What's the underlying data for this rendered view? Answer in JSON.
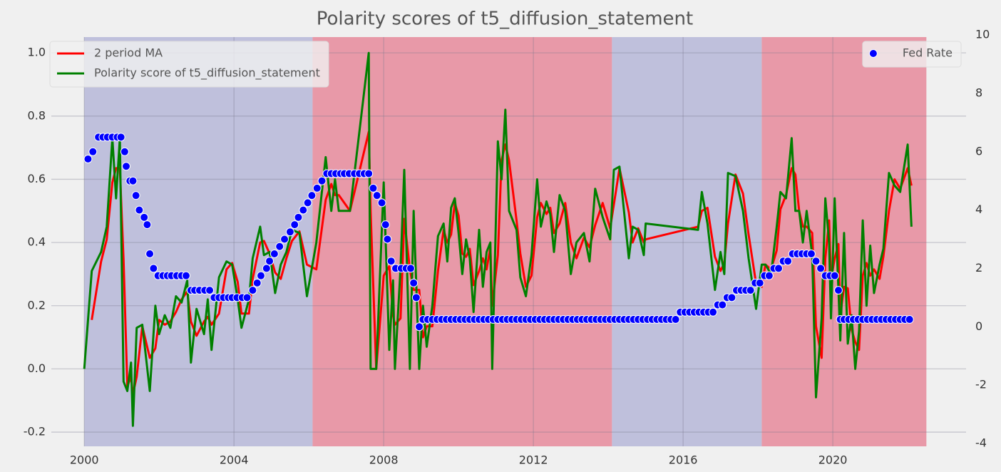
{
  "chart_data": {
    "type": "line",
    "title": "Polarity scores of t5_diffusion_statement",
    "xlim": [
      1999.12,
      2023.56
    ],
    "xticks": [
      2000,
      2004,
      2008,
      2012,
      2016,
      2020
    ],
    "ylim": [
      -0.245,
      1.05
    ],
    "yticks": [
      -0.2,
      {
        "value": 0,
        "label": "0.0"
      },
      0.2,
      0.4,
      0.6,
      0.8,
      {
        "value": 1,
        "label": "1.0"
      }
    ],
    "y2lim": [
      -4.1,
      9.93
    ],
    "y2ticks": [
      -4,
      -2,
      0,
      2,
      4,
      6,
      8,
      10
    ],
    "grid": true,
    "legend": "upper left",
    "legend2": "upper right",
    "spans": [
      {
        "start": 2000.0,
        "end": 2006.1,
        "color": "#bfc0dc"
      },
      {
        "start": 2006.1,
        "end": 2014.1,
        "color": "#e899a8"
      },
      {
        "start": 2014.1,
        "end": 2018.1,
        "color": "#bfc0dc"
      },
      {
        "start": 2018.1,
        "end": 2022.5,
        "color": "#e899a8"
      }
    ],
    "x": [
      2000.0,
      2000.2,
      2000.45,
      2000.6,
      2000.75,
      2000.85,
      2000.95,
      2001.05,
      2001.15,
      2001.25,
      2001.3,
      2001.4,
      2001.55,
      2001.75,
      2001.9,
      2002.0,
      2002.15,
      2002.3,
      2002.45,
      2002.6,
      2002.75,
      2002.85,
      2003.0,
      2003.2,
      2003.3,
      2003.4,
      2003.6,
      2003.8,
      2003.95,
      2004.1,
      2004.2,
      2004.4,
      2004.5,
      2004.7,
      2004.8,
      2004.95,
      2005.1,
      2005.25,
      2005.4,
      2005.55,
      2005.75,
      2005.95,
      2006.2,
      2006.45,
      2006.6,
      2006.7,
      2006.8,
      2007.1,
      2007.6,
      2007.65,
      2007.8,
      2008.0,
      2008.15,
      2008.25,
      2008.3,
      2008.45,
      2008.55,
      2008.7,
      2008.8,
      2008.95,
      2009.05,
      2009.15,
      2009.3,
      2009.45,
      2009.6,
      2009.7,
      2009.8,
      2009.9,
      2010.0,
      2010.1,
      2010.2,
      2010.3,
      2010.4,
      2010.55,
      2010.65,
      2010.75,
      2010.85,
      2010.9,
      2011.05,
      2011.15,
      2011.25,
      2011.35,
      2011.55,
      2011.65,
      2011.8,
      2011.95,
      2012.1,
      2012.2,
      2012.35,
      2012.45,
      2012.55,
      2012.7,
      2012.85,
      2013.0,
      2013.15,
      2013.35,
      2013.5,
      2013.65,
      2013.85,
      2014.05,
      2014.15,
      2014.3,
      2014.55,
      2014.65,
      2014.8,
      2014.95,
      2015.0,
      2016.4,
      2016.5,
      2016.65,
      2016.85,
      2017.0,
      2017.1,
      2017.2,
      2017.4,
      2017.6,
      2017.75,
      2017.95,
      2018.1,
      2018.2,
      2018.35,
      2018.5,
      2018.6,
      2018.75,
      2018.9,
      2019.0,
      2019.1,
      2019.2,
      2019.3,
      2019.45,
      2019.55,
      2019.7,
      2019.8,
      2019.9,
      2019.95,
      2020.05,
      2020.15,
      2020.2,
      2020.3,
      2020.4,
      2020.5,
      2020.6,
      2020.7,
      2020.8,
      2020.9,
      2021.0,
      2021.1,
      2021.25,
      2021.35,
      2021.5,
      2021.65,
      2021.8,
      2022.0,
      2022.1
    ],
    "series": [
      {
        "name": "2 period MA",
        "color": "#ff0000",
        "values": [
          null,
          0.155,
          0.34,
          0.41,
          0.59,
          0.635,
          0.635,
          0.345,
          -0.055,
          -0.025,
          -0.08,
          -0.025,
          0.135,
          0.035,
          0.065,
          0.155,
          0.14,
          0.15,
          0.18,
          0.22,
          0.245,
          0.15,
          0.105,
          0.15,
          0.165,
          0.14,
          0.175,
          0.315,
          0.335,
          0.275,
          0.175,
          0.175,
          0.285,
          0.4,
          0.405,
          0.365,
          0.305,
          0.285,
          0.35,
          0.405,
          0.435,
          0.33,
          0.315,
          0.535,
          0.585,
          0.55,
          0.55,
          0.5,
          0.75,
          0.5,
          0,
          0.295,
          0.325,
          0.17,
          0.14,
          0.16,
          0.475,
          0.315,
          0.25,
          0.25,
          0.1,
          0.135,
          0.135,
          0.31,
          0.44,
          0.4,
          0.425,
          0.525,
          0.485,
          0.365,
          0.355,
          0.38,
          0.265,
          0.31,
          0.35,
          0.315,
          0.385,
          0.2,
          0.36,
          0.66,
          0.71,
          0.66,
          0.47,
          0.365,
          0.26,
          0.295,
          0.48,
          0.525,
          0.49,
          0.51,
          0.43,
          0.46,
          0.525,
          0.4,
          0.35,
          0.415,
          0.385,
          0.455,
          0.525,
          0.445,
          0.52,
          0.635,
          0.495,
          0.4,
          0.445,
          0.4,
          0.41,
          0.45,
          0.5,
          0.51,
          0.355,
          0.31,
          0.335,
          0.46,
          0.615,
          0.555,
          0.425,
          0.27,
          0.26,
          0.33,
          0.315,
          0.375,
          0.505,
          0.55,
          0.635,
          0.615,
          0.5,
          0.45,
          0.45,
          0.43,
          0.135,
          0.035,
          0.35,
          0.47,
          0.28,
          0.35,
          0.395,
          0.17,
          0.26,
          0.255,
          0.125,
          0.085,
          0.06,
          0.295,
          0.335,
          0.295,
          0.315,
          0.285,
          0.355,
          0.5,
          0.6,
          0.57,
          0.635,
          0.58
        ]
      },
      {
        "name": "Polarity score of t5_diffusion_statement",
        "color": "#008000",
        "values": [
          0.0,
          0.31,
          0.37,
          0.45,
          0.73,
          0.54,
          0.73,
          -0.04,
          -0.07,
          0.02,
          -0.18,
          0.13,
          0.14,
          -0.07,
          0.2,
          0.11,
          0.17,
          0.13,
          0.23,
          0.21,
          0.28,
          0.02,
          0.19,
          0.11,
          0.22,
          0.06,
          0.29,
          0.34,
          0.33,
          0.22,
          0.13,
          0.22,
          0.35,
          0.45,
          0.36,
          0.37,
          0.24,
          0.33,
          0.37,
          0.44,
          0.43,
          0.23,
          0.4,
          0.67,
          0.5,
          0.6,
          0.5,
          0.5,
          1.0,
          0.0,
          0.0,
          0.59,
          0.06,
          0.28,
          0.0,
          0.32,
          0.63,
          0.0,
          0.5,
          0.0,
          0.2,
          0.07,
          0.2,
          0.42,
          0.46,
          0.34,
          0.51,
          0.54,
          0.43,
          0.3,
          0.41,
          0.35,
          0.18,
          0.44,
          0.26,
          0.37,
          0.4,
          0.0,
          0.72,
          0.6,
          0.82,
          0.5,
          0.44,
          0.29,
          0.23,
          0.36,
          0.6,
          0.45,
          0.53,
          0.49,
          0.37,
          0.55,
          0.5,
          0.3,
          0.4,
          0.43,
          0.34,
          0.57,
          0.48,
          0.41,
          0.63,
          0.64,
          0.35,
          0.45,
          0.44,
          0.36,
          0.46,
          0.44,
          0.56,
          0.46,
          0.25,
          0.37,
          0.3,
          0.62,
          0.61,
          0.5,
          0.35,
          0.19,
          0.33,
          0.33,
          0.3,
          0.45,
          0.56,
          0.54,
          0.73,
          0.5,
          0.5,
          0.4,
          0.5,
          0.36,
          -0.09,
          0.16,
          0.54,
          0.4,
          0.16,
          0.54,
          0.25,
          0.09,
          0.43,
          0.08,
          0.17,
          0.0,
          0.12,
          0.47,
          0.2,
          0.39,
          0.24,
          0.33,
          0.38,
          0.62,
          0.58,
          0.56,
          0.71,
          0.45
        ]
      },
      {
        "name": "Fed Rate",
        "type": "scatter",
        "axis": "y2",
        "color": "#0000ff",
        "x": [
          2000.1,
          2000.23,
          2000.38,
          2000.5,
          2000.62,
          2000.75,
          2000.88,
          2000.98,
          2001.08,
          2001.12,
          2001.22,
          2001.3,
          2001.38,
          2001.47,
          2001.6,
          2001.68,
          2001.75,
          2001.85,
          2001.97,
          2002.1,
          2002.22,
          2002.33,
          2002.47,
          2002.6,
          2002.72,
          2002.85,
          2002.95,
          2003.08,
          2003.22,
          2003.35,
          2003.47,
          2003.6,
          2003.72,
          2003.85,
          2003.95,
          2004.08,
          2004.22,
          2004.35,
          2004.5,
          2004.62,
          2004.72,
          2004.87,
          2004.95,
          2005.08,
          2005.22,
          2005.35,
          2005.5,
          2005.62,
          2005.72,
          2005.85,
          2005.97,
          2006.08,
          2006.22,
          2006.35,
          2006.48,
          2006.6,
          2006.72,
          2006.85,
          2006.95,
          2007.08,
          2007.22,
          2007.35,
          2007.48,
          2007.6,
          2007.72,
          2007.82,
          2007.95,
          2008.05,
          2008.1,
          2008.2,
          2008.32,
          2008.47,
          2008.6,
          2008.72,
          2008.8,
          2008.87,
          2008.95,
          2009.05,
          2009.175,
          2009.3,
          2009.425,
          2009.55,
          2009.675,
          2009.8,
          2009.925,
          2010.05,
          2010.175,
          2010.3,
          2010.425,
          2010.55,
          2010.675,
          2010.8,
          2010.925,
          2011.05,
          2011.175,
          2011.3,
          2011.425,
          2011.55,
          2011.675,
          2011.8,
          2011.925,
          2012.05,
          2012.175,
          2012.3,
          2012.425,
          2012.55,
          2012.675,
          2012.8,
          2012.925,
          2013.05,
          2013.175,
          2013.3,
          2013.425,
          2013.55,
          2013.675,
          2013.8,
          2013.925,
          2014.05,
          2014.175,
          2014.3,
          2014.425,
          2014.55,
          2014.675,
          2014.8,
          2014.925,
          2015.05,
          2015.175,
          2015.3,
          2015.425,
          2015.55,
          2015.675,
          2015.8,
          2015.925,
          2016.05,
          2016.175,
          2016.3,
          2016.425,
          2016.55,
          2016.675,
          2016.8,
          2016.925,
          2017.05,
          2017.175,
          2017.3,
          2017.425,
          2017.55,
          2017.675,
          2017.8,
          2017.925,
          2018.05,
          2018.175,
          2018.3,
          2018.425,
          2018.55,
          2018.675,
          2018.8,
          2018.925,
          2019.05,
          2019.175,
          2019.3,
          2019.425,
          2019.55,
          2019.675,
          2019.8,
          2019.925,
          2020.05,
          2020.15,
          2020.2,
          2020.3,
          2020.425,
          2020.55,
          2020.675,
          2020.8,
          2020.925,
          2021.05,
          2021.175,
          2021.3,
          2021.425,
          2021.55,
          2021.675,
          2021.8,
          2021.925,
          2022.05
        ],
        "values": [
          5.75,
          6.0,
          6.5,
          6.5,
          6.5,
          6.5,
          6.5,
          6.5,
          6.0,
          5.5,
          5.0,
          5.0,
          4.5,
          4.0,
          3.75,
          3.5,
          2.5,
          2.0,
          1.75,
          1.75,
          1.75,
          1.75,
          1.75,
          1.75,
          1.75,
          1.25,
          1.25,
          1.25,
          1.25,
          1.25,
          1.0,
          1.0,
          1.0,
          1.0,
          1.0,
          1.0,
          1.0,
          1.0,
          1.25,
          1.5,
          1.75,
          2.0,
          2.25,
          2.5,
          2.75,
          3.0,
          3.25,
          3.5,
          3.75,
          4.0,
          4.25,
          4.5,
          4.75,
          5.0,
          5.25,
          5.25,
          5.25,
          5.25,
          5.25,
          5.25,
          5.25,
          5.25,
          5.25,
          5.25,
          4.75,
          4.5,
          4.25,
          3.5,
          3.0,
          2.25,
          2.0,
          2.0,
          2.0,
          2.0,
          1.5,
          1.0,
          0.0,
          0.25,
          0.25,
          0.25,
          0.25,
          0.25,
          0.25,
          0.25,
          0.25,
          0.25,
          0.25,
          0.25,
          0.25,
          0.25,
          0.25,
          0.25,
          0.25,
          0.25,
          0.25,
          0.25,
          0.25,
          0.25,
          0.25,
          0.25,
          0.25,
          0.25,
          0.25,
          0.25,
          0.25,
          0.25,
          0.25,
          0.25,
          0.25,
          0.25,
          0.25,
          0.25,
          0.25,
          0.25,
          0.25,
          0.25,
          0.25,
          0.25,
          0.25,
          0.25,
          0.25,
          0.25,
          0.25,
          0.25,
          0.25,
          0.25,
          0.25,
          0.25,
          0.25,
          0.25,
          0.25,
          0.25,
          0.5,
          0.5,
          0.5,
          0.5,
          0.5,
          0.5,
          0.5,
          0.5,
          0.75,
          0.75,
          1.0,
          1.0,
          1.25,
          1.25,
          1.25,
          1.25,
          1.5,
          1.5,
          1.75,
          1.75,
          2.0,
          2.0,
          2.25,
          2.25,
          2.5,
          2.5,
          2.5,
          2.5,
          2.5,
          2.25,
          2.0,
          1.75,
          1.75,
          1.75,
          1.25,
          0.25,
          0.25,
          0.25,
          0.25,
          0.25,
          0.25,
          0.25,
          0.25,
          0.25,
          0.25,
          0.25,
          0.25,
          0.25,
          0.25,
          0.25,
          0.25
        ]
      }
    ]
  }
}
